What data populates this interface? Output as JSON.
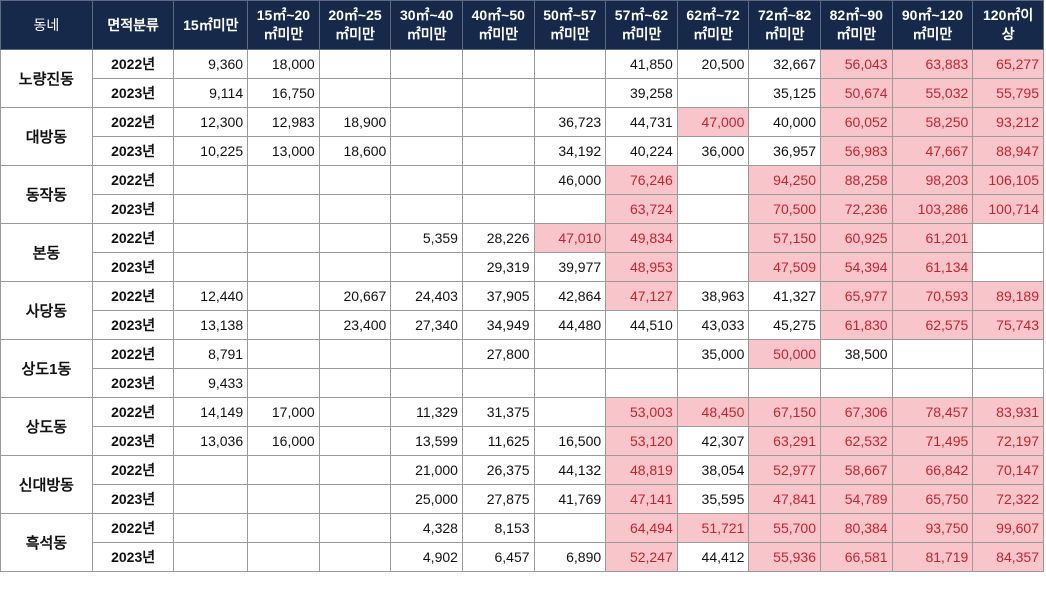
{
  "headers": [
    "동네",
    "면적분류",
    "15㎡미만",
    "15㎡~20\n㎡미만",
    "20㎡~25\n㎡미만",
    "30㎡~40\n㎡미만",
    "40㎡~50\n㎡미만",
    "50㎡~57\n㎡미만",
    "57㎡~62\n㎡미만",
    "62㎡~72\n㎡미만",
    "72㎡~82\n㎡미만",
    "82㎡~90\n㎡미만",
    "90㎡~120\n㎡미만",
    "120㎡이\n상"
  ],
  "highlight_color": "#f8c6ca",
  "highlight_text_color": "#c4242e",
  "header_color": "#16294a",
  "rows": [
    {
      "dong": "노량진동",
      "year": "2022년",
      "cells": [
        {
          "v": "9,360",
          "h": false
        },
        {
          "v": "18,000",
          "h": false
        },
        {
          "v": "",
          "h": false
        },
        {
          "v": "",
          "h": false
        },
        {
          "v": "",
          "h": false
        },
        {
          "v": "",
          "h": false
        },
        {
          "v": "41,850",
          "h": false
        },
        {
          "v": "20,500",
          "h": false
        },
        {
          "v": "32,667",
          "h": false
        },
        {
          "v": "56,043",
          "h": true
        },
        {
          "v": "63,883",
          "h": true
        },
        {
          "v": "65,277",
          "h": true
        }
      ]
    },
    {
      "dong": "노량진동",
      "year": "2023년",
      "cells": [
        {
          "v": "9,114",
          "h": false
        },
        {
          "v": "16,750",
          "h": false
        },
        {
          "v": "",
          "h": false
        },
        {
          "v": "",
          "h": false
        },
        {
          "v": "",
          "h": false
        },
        {
          "v": "",
          "h": false
        },
        {
          "v": "39,258",
          "h": false
        },
        {
          "v": "",
          "h": false
        },
        {
          "v": "35,125",
          "h": false
        },
        {
          "v": "50,674",
          "h": true
        },
        {
          "v": "55,032",
          "h": true
        },
        {
          "v": "55,795",
          "h": true
        }
      ]
    },
    {
      "dong": "대방동",
      "year": "2022년",
      "cells": [
        {
          "v": "12,300",
          "h": false
        },
        {
          "v": "12,983",
          "h": false
        },
        {
          "v": "18,900",
          "h": false
        },
        {
          "v": "",
          "h": false
        },
        {
          "v": "",
          "h": false
        },
        {
          "v": "36,723",
          "h": false
        },
        {
          "v": "44,731",
          "h": false
        },
        {
          "v": "47,000",
          "h": true
        },
        {
          "v": "40,000",
          "h": false
        },
        {
          "v": "60,052",
          "h": true
        },
        {
          "v": "58,250",
          "h": true
        },
        {
          "v": "93,212",
          "h": true
        }
      ]
    },
    {
      "dong": "대방동",
      "year": "2023년",
      "cells": [
        {
          "v": "10,225",
          "h": false
        },
        {
          "v": "13,000",
          "h": false
        },
        {
          "v": "18,600",
          "h": false
        },
        {
          "v": "",
          "h": false
        },
        {
          "v": "",
          "h": false
        },
        {
          "v": "34,192",
          "h": false
        },
        {
          "v": "40,224",
          "h": false
        },
        {
          "v": "36,000",
          "h": false
        },
        {
          "v": "36,957",
          "h": false
        },
        {
          "v": "56,983",
          "h": true
        },
        {
          "v": "47,667",
          "h": true
        },
        {
          "v": "88,947",
          "h": true
        }
      ]
    },
    {
      "dong": "동작동",
      "year": "2022년",
      "cells": [
        {
          "v": "",
          "h": false
        },
        {
          "v": "",
          "h": false
        },
        {
          "v": "",
          "h": false
        },
        {
          "v": "",
          "h": false
        },
        {
          "v": "",
          "h": false
        },
        {
          "v": "46,000",
          "h": false
        },
        {
          "v": "76,246",
          "h": true
        },
        {
          "v": "",
          "h": false
        },
        {
          "v": "94,250",
          "h": true
        },
        {
          "v": "88,258",
          "h": true
        },
        {
          "v": "98,203",
          "h": true
        },
        {
          "v": "106,105",
          "h": true
        }
      ]
    },
    {
      "dong": "동작동",
      "year": "2023년",
      "cells": [
        {
          "v": "",
          "h": false
        },
        {
          "v": "",
          "h": false
        },
        {
          "v": "",
          "h": false
        },
        {
          "v": "",
          "h": false
        },
        {
          "v": "",
          "h": false
        },
        {
          "v": "",
          "h": false
        },
        {
          "v": "63,724",
          "h": true
        },
        {
          "v": "",
          "h": false
        },
        {
          "v": "70,500",
          "h": true
        },
        {
          "v": "72,236",
          "h": true
        },
        {
          "v": "103,286",
          "h": true
        },
        {
          "v": "100,714",
          "h": true
        }
      ]
    },
    {
      "dong": "본동",
      "year": "2022년",
      "cells": [
        {
          "v": "",
          "h": false
        },
        {
          "v": "",
          "h": false
        },
        {
          "v": "",
          "h": false
        },
        {
          "v": "5,359",
          "h": false
        },
        {
          "v": "28,226",
          "h": false
        },
        {
          "v": "47,010",
          "h": true
        },
        {
          "v": "49,834",
          "h": true
        },
        {
          "v": "",
          "h": false
        },
        {
          "v": "57,150",
          "h": true
        },
        {
          "v": "60,925",
          "h": true
        },
        {
          "v": "61,201",
          "h": true
        },
        {
          "v": "",
          "h": false
        }
      ]
    },
    {
      "dong": "본동",
      "year": "2023년",
      "cells": [
        {
          "v": "",
          "h": false
        },
        {
          "v": "",
          "h": false
        },
        {
          "v": "",
          "h": false
        },
        {
          "v": "",
          "h": false
        },
        {
          "v": "29,319",
          "h": false
        },
        {
          "v": "39,977",
          "h": false
        },
        {
          "v": "48,953",
          "h": true
        },
        {
          "v": "",
          "h": false
        },
        {
          "v": "47,509",
          "h": true
        },
        {
          "v": "54,394",
          "h": true
        },
        {
          "v": "61,134",
          "h": true
        },
        {
          "v": "",
          "h": false
        }
      ]
    },
    {
      "dong": "사당동",
      "year": "2022년",
      "cells": [
        {
          "v": "12,440",
          "h": false
        },
        {
          "v": "",
          "h": false
        },
        {
          "v": "20,667",
          "h": false
        },
        {
          "v": "24,403",
          "h": false
        },
        {
          "v": "37,905",
          "h": false
        },
        {
          "v": "42,864",
          "h": false
        },
        {
          "v": "47,127",
          "h": true
        },
        {
          "v": "38,963",
          "h": false
        },
        {
          "v": "41,327",
          "h": false
        },
        {
          "v": "65,977",
          "h": true
        },
        {
          "v": "70,593",
          "h": true
        },
        {
          "v": "89,189",
          "h": true
        }
      ]
    },
    {
      "dong": "사당동",
      "year": "2023년",
      "cells": [
        {
          "v": "13,138",
          "h": false
        },
        {
          "v": "",
          "h": false
        },
        {
          "v": "23,400",
          "h": false
        },
        {
          "v": "27,340",
          "h": false
        },
        {
          "v": "34,949",
          "h": false
        },
        {
          "v": "44,480",
          "h": false
        },
        {
          "v": "44,510",
          "h": false
        },
        {
          "v": "43,033",
          "h": false
        },
        {
          "v": "45,275",
          "h": false
        },
        {
          "v": "61,830",
          "h": true
        },
        {
          "v": "62,575",
          "h": true
        },
        {
          "v": "75,743",
          "h": true
        }
      ]
    },
    {
      "dong": "상도1동",
      "year": "2022년",
      "cells": [
        {
          "v": "8,791",
          "h": false
        },
        {
          "v": "",
          "h": false
        },
        {
          "v": "",
          "h": false
        },
        {
          "v": "",
          "h": false
        },
        {
          "v": "27,800",
          "h": false
        },
        {
          "v": "",
          "h": false
        },
        {
          "v": "",
          "h": false
        },
        {
          "v": "35,000",
          "h": false
        },
        {
          "v": "50,000",
          "h": true
        },
        {
          "v": "38,500",
          "h": false
        },
        {
          "v": "",
          "h": false
        },
        {
          "v": "",
          "h": false
        }
      ]
    },
    {
      "dong": "상도1동",
      "year": "2023년",
      "cells": [
        {
          "v": "9,433",
          "h": false
        },
        {
          "v": "",
          "h": false
        },
        {
          "v": "",
          "h": false
        },
        {
          "v": "",
          "h": false
        },
        {
          "v": "",
          "h": false
        },
        {
          "v": "",
          "h": false
        },
        {
          "v": "",
          "h": false
        },
        {
          "v": "",
          "h": false
        },
        {
          "v": "",
          "h": false
        },
        {
          "v": "",
          "h": false
        },
        {
          "v": "",
          "h": false
        },
        {
          "v": "",
          "h": false
        }
      ]
    },
    {
      "dong": "상도동",
      "year": "2022년",
      "cells": [
        {
          "v": "14,149",
          "h": false
        },
        {
          "v": "17,000",
          "h": false
        },
        {
          "v": "",
          "h": false
        },
        {
          "v": "11,329",
          "h": false
        },
        {
          "v": "31,375",
          "h": false
        },
        {
          "v": "",
          "h": false
        },
        {
          "v": "53,003",
          "h": true
        },
        {
          "v": "48,450",
          "h": true
        },
        {
          "v": "67,150",
          "h": true
        },
        {
          "v": "67,306",
          "h": true
        },
        {
          "v": "78,457",
          "h": true
        },
        {
          "v": "83,931",
          "h": true
        }
      ]
    },
    {
      "dong": "상도동",
      "year": "2023년",
      "cells": [
        {
          "v": "13,036",
          "h": false
        },
        {
          "v": "16,000",
          "h": false
        },
        {
          "v": "",
          "h": false
        },
        {
          "v": "13,599",
          "h": false
        },
        {
          "v": "11,625",
          "h": false
        },
        {
          "v": "16,500",
          "h": false
        },
        {
          "v": "53,120",
          "h": true
        },
        {
          "v": "42,307",
          "h": false
        },
        {
          "v": "63,291",
          "h": true
        },
        {
          "v": "62,532",
          "h": true
        },
        {
          "v": "71,495",
          "h": true
        },
        {
          "v": "72,197",
          "h": true
        }
      ]
    },
    {
      "dong": "신대방동",
      "year": "2022년",
      "cells": [
        {
          "v": "",
          "h": false
        },
        {
          "v": "",
          "h": false
        },
        {
          "v": "",
          "h": false
        },
        {
          "v": "21,000",
          "h": false
        },
        {
          "v": "26,375",
          "h": false
        },
        {
          "v": "44,132",
          "h": false
        },
        {
          "v": "48,819",
          "h": true
        },
        {
          "v": "38,054",
          "h": false
        },
        {
          "v": "52,977",
          "h": true
        },
        {
          "v": "58,667",
          "h": true
        },
        {
          "v": "66,842",
          "h": true
        },
        {
          "v": "70,147",
          "h": true
        }
      ]
    },
    {
      "dong": "신대방동",
      "year": "2023년",
      "cells": [
        {
          "v": "",
          "h": false
        },
        {
          "v": "",
          "h": false
        },
        {
          "v": "",
          "h": false
        },
        {
          "v": "25,000",
          "h": false
        },
        {
          "v": "27,875",
          "h": false
        },
        {
          "v": "41,769",
          "h": false
        },
        {
          "v": "47,141",
          "h": true
        },
        {
          "v": "35,595",
          "h": false
        },
        {
          "v": "47,841",
          "h": true
        },
        {
          "v": "54,789",
          "h": true
        },
        {
          "v": "65,750",
          "h": true
        },
        {
          "v": "72,322",
          "h": true
        }
      ]
    },
    {
      "dong": "흑석동",
      "year": "2022년",
      "cells": [
        {
          "v": "",
          "h": false
        },
        {
          "v": "",
          "h": false
        },
        {
          "v": "",
          "h": false
        },
        {
          "v": "4,328",
          "h": false
        },
        {
          "v": "8,153",
          "h": false
        },
        {
          "v": "",
          "h": false
        },
        {
          "v": "64,494",
          "h": true
        },
        {
          "v": "51,721",
          "h": true
        },
        {
          "v": "55,700",
          "h": true
        },
        {
          "v": "80,384",
          "h": true
        },
        {
          "v": "93,750",
          "h": true
        },
        {
          "v": "99,607",
          "h": true
        }
      ]
    },
    {
      "dong": "흑석동",
      "year": "2023년",
      "cells": [
        {
          "v": "",
          "h": false
        },
        {
          "v": "",
          "h": false
        },
        {
          "v": "",
          "h": false
        },
        {
          "v": "4,902",
          "h": false
        },
        {
          "v": "6,457",
          "h": false
        },
        {
          "v": "6,890",
          "h": false
        },
        {
          "v": "52,247",
          "h": true
        },
        {
          "v": "44,412",
          "h": false
        },
        {
          "v": "55,936",
          "h": true
        },
        {
          "v": "66,581",
          "h": true
        },
        {
          "v": "81,719",
          "h": true
        },
        {
          "v": "84,357",
          "h": true
        }
      ]
    }
  ]
}
